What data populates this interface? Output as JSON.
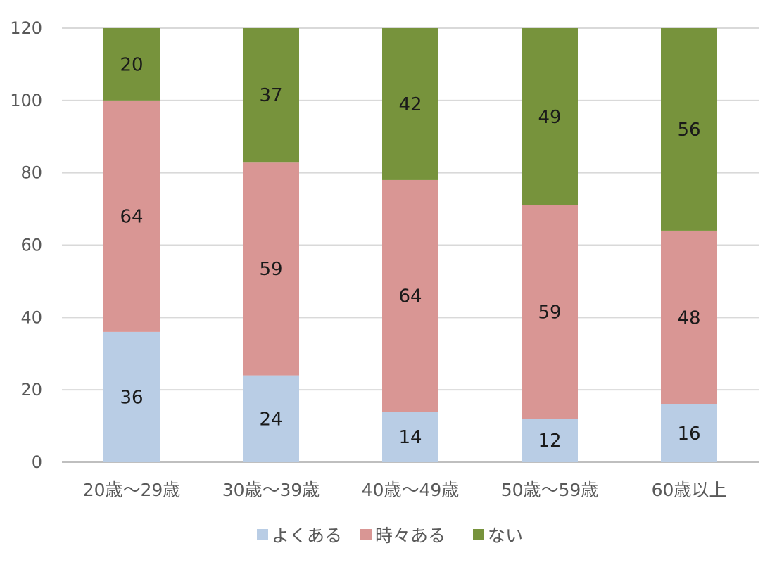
{
  "chart_data": {
    "type": "bar",
    "stacked": true,
    "categories": [
      "20歳～29歳",
      "30歳～39歳",
      "40歳～49歳",
      "50歳～59歳",
      "60歳以上"
    ],
    "series": [
      {
        "name": "よくある",
        "color": "#b9cde5",
        "values": [
          36,
          24,
          14,
          12,
          16
        ]
      },
      {
        "name": "時々ある",
        "color": "#d99694",
        "values": [
          64,
          59,
          64,
          59,
          48
        ]
      },
      {
        "name": "ない",
        "color": "#77933c",
        "values": [
          20,
          37,
          42,
          49,
          56
        ]
      }
    ],
    "y_ticks": [
      "0",
      "20",
      "40",
      "60",
      "80",
      "100",
      "120"
    ],
    "ylim": [
      0,
      120
    ],
    "grid": true,
    "legend_position": "bottom",
    "data_labels": true
  }
}
